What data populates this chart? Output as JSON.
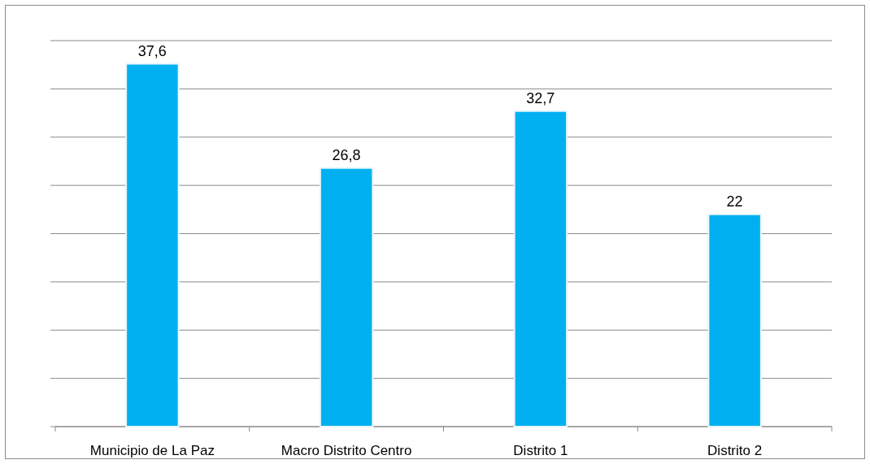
{
  "chart_data": {
    "type": "bar",
    "categories": [
      "Municipio de La Paz",
      "Macro Distrito Centro",
      "Distrito 1",
      "Distrito 2"
    ],
    "values": [
      37.6,
      26.8,
      32.7,
      22
    ],
    "value_labels": [
      "37,6",
      "26,8",
      "32,7",
      "22"
    ],
    "color": "#00b0f0",
    "ylim": [
      0,
      40
    ],
    "yticks": [
      {
        "value": 0,
        "label": null
      },
      {
        "value": 5,
        "label": null
      },
      {
        "value": 10,
        "label": null
      },
      {
        "value": 15,
        "label": null
      },
      {
        "value": 20,
        "label": null
      },
      {
        "value": 25,
        "label": null
      },
      {
        "value": 30,
        "label": null
      },
      {
        "value": 35,
        "label": null
      },
      {
        "value": 40,
        "label": null
      }
    ],
    "grid": "y",
    "tick_labels": "x"
  }
}
